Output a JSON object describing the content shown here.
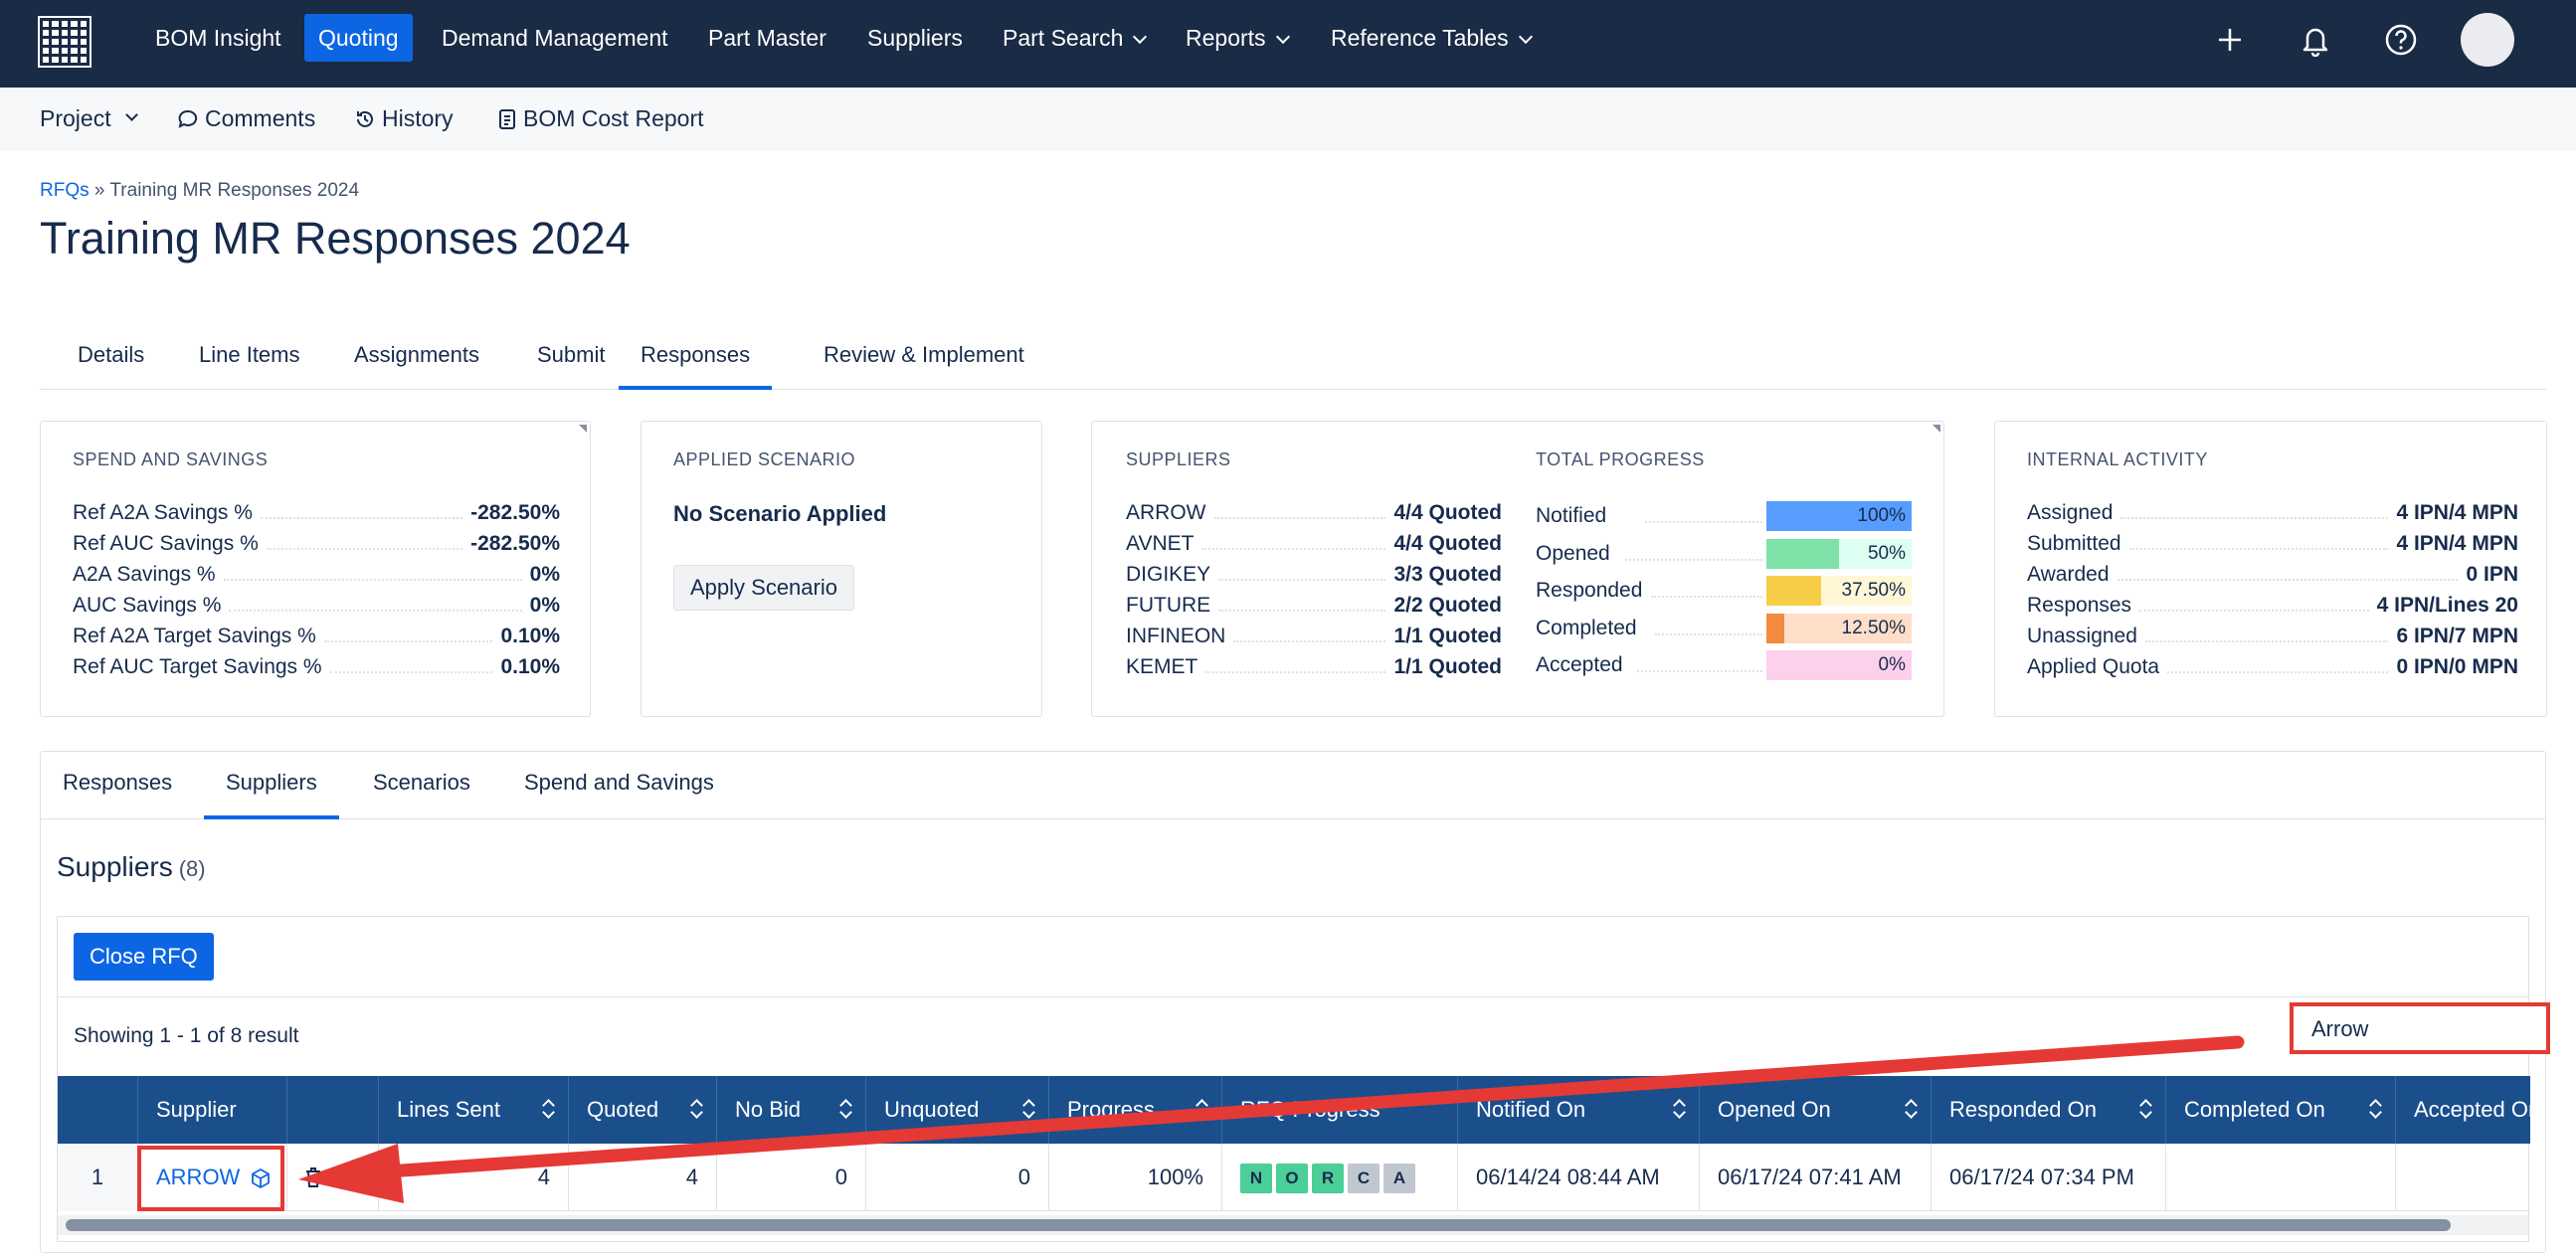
{
  "topnav": {
    "items": [
      {
        "label": "BOM Insight"
      },
      {
        "label": "Quoting"
      },
      {
        "label": "Demand Management"
      },
      {
        "label": "Part Master"
      },
      {
        "label": "Suppliers"
      },
      {
        "label": "Part Search"
      },
      {
        "label": "Reports"
      },
      {
        "label": "Reference Tables"
      }
    ],
    "active": "Quoting"
  },
  "subnav": {
    "project": "Project",
    "comments": "Comments",
    "history": "History",
    "bom_cost_report": "BOM Cost Report"
  },
  "breadcrumb": {
    "root": "RFQs",
    "separator": "»",
    "current": "Training MR Responses 2024"
  },
  "page_title": "Training MR Responses 2024",
  "tabs": [
    "Details",
    "Line Items",
    "Assignments",
    "Submit",
    "Responses",
    "Review & Implement"
  ],
  "active_tab": "Responses",
  "spend_savings": {
    "header": "SPEND AND SAVINGS",
    "rows": [
      {
        "label": "Ref A2A Savings %",
        "value": "-282.50%"
      },
      {
        "label": "Ref AUC Savings %",
        "value": "-282.50%"
      },
      {
        "label": "A2A Savings %",
        "value": "0%"
      },
      {
        "label": "AUC Savings %",
        "value": "0%"
      },
      {
        "label": "Ref A2A Target Savings %",
        "value": "0.10%"
      },
      {
        "label": "Ref AUC Target Savings %",
        "value": "0.10%"
      }
    ]
  },
  "applied_scenario": {
    "header": "APPLIED SCENARIO",
    "status": "No Scenario Applied",
    "button": "Apply Scenario"
  },
  "suppliers_card": {
    "header": "SUPPLIERS",
    "rows": [
      {
        "label": "ARROW",
        "value": "4/4 Quoted"
      },
      {
        "label": "AVNET",
        "value": "4/4 Quoted"
      },
      {
        "label": "DIGIKEY",
        "value": "3/3 Quoted"
      },
      {
        "label": "FUTURE",
        "value": "2/2 Quoted"
      },
      {
        "label": "INFINEON",
        "value": "1/1 Quoted"
      },
      {
        "label": "KEMET",
        "value": "1/1 Quoted"
      }
    ]
  },
  "total_progress": {
    "header": "TOTAL PROGRESS",
    "rows": [
      {
        "label": "Notified",
        "value": "100%",
        "fraction": 1.0,
        "color": "#579dff",
        "track": "#579dff"
      },
      {
        "label": "Opened",
        "value": "50%",
        "fraction": 0.5,
        "color": "#7ee2a8",
        "track": "#dcfff1"
      },
      {
        "label": "Responded",
        "value": "37.50%",
        "fraction": 0.375,
        "color": "#f5cd47",
        "track": "#fff7d6"
      },
      {
        "label": "Completed",
        "value": "12.50%",
        "fraction": 0.125,
        "color": "#f38a3f",
        "track": "#fedec8"
      },
      {
        "label": "Accepted",
        "value": "0%",
        "fraction": 0,
        "color": "#f797d2",
        "track": "#fdd0ec"
      }
    ]
  },
  "internal_activity": {
    "header": "INTERNAL ACTIVITY",
    "rows": [
      {
        "label": "Assigned",
        "value": "4 IPN/4 MPN"
      },
      {
        "label": "Submitted",
        "value": "4 IPN/4 MPN"
      },
      {
        "label": "Awarded",
        "value": "0 IPN"
      },
      {
        "label": "Responses",
        "value": "4 IPN/Lines 20"
      },
      {
        "label": "Unassigned",
        "value": "6 IPN/7 MPN"
      },
      {
        "label": "Applied Quota",
        "value": "0 IPN/0 MPN"
      }
    ]
  },
  "panel_tabs": [
    "Responses",
    "Suppliers",
    "Scenarios",
    "Spend and Savings"
  ],
  "panel_active": "Suppliers",
  "suppliers_section": {
    "title": "Suppliers",
    "count": "(8)",
    "close_button": "Close RFQ",
    "showing": "Showing 1 - 1 of 8 result",
    "search_value": "Arrow"
  },
  "table": {
    "headers": [
      "",
      "Supplier",
      "",
      "Lines Sent",
      "Quoted",
      "No Bid",
      "Unquoted",
      "Progress",
      "RFQ Progress",
      "Notified On",
      "Opened On",
      "Responded On",
      "Completed On",
      "Accepted On"
    ],
    "row": {
      "index": "1",
      "supplier": "ARROW",
      "lines_sent": "4",
      "quoted": "4",
      "no_bid": "0",
      "unquoted": "0",
      "progress": "100%",
      "rfq_progress": [
        {
          "letter": "N",
          "color": "#4bce97"
        },
        {
          "letter": "O",
          "color": "#4bce97"
        },
        {
          "letter": "R",
          "color": "#4bce97"
        },
        {
          "letter": "C",
          "color": "#c1c7d0"
        },
        {
          "letter": "A",
          "color": "#c1c7d0"
        }
      ],
      "notified_on": "06/14/24 08:44 AM",
      "opened_on": "06/17/24 07:41 AM",
      "responded_on": "06/17/24 07:34 PM",
      "completed_on": "",
      "accepted_on": ""
    }
  }
}
